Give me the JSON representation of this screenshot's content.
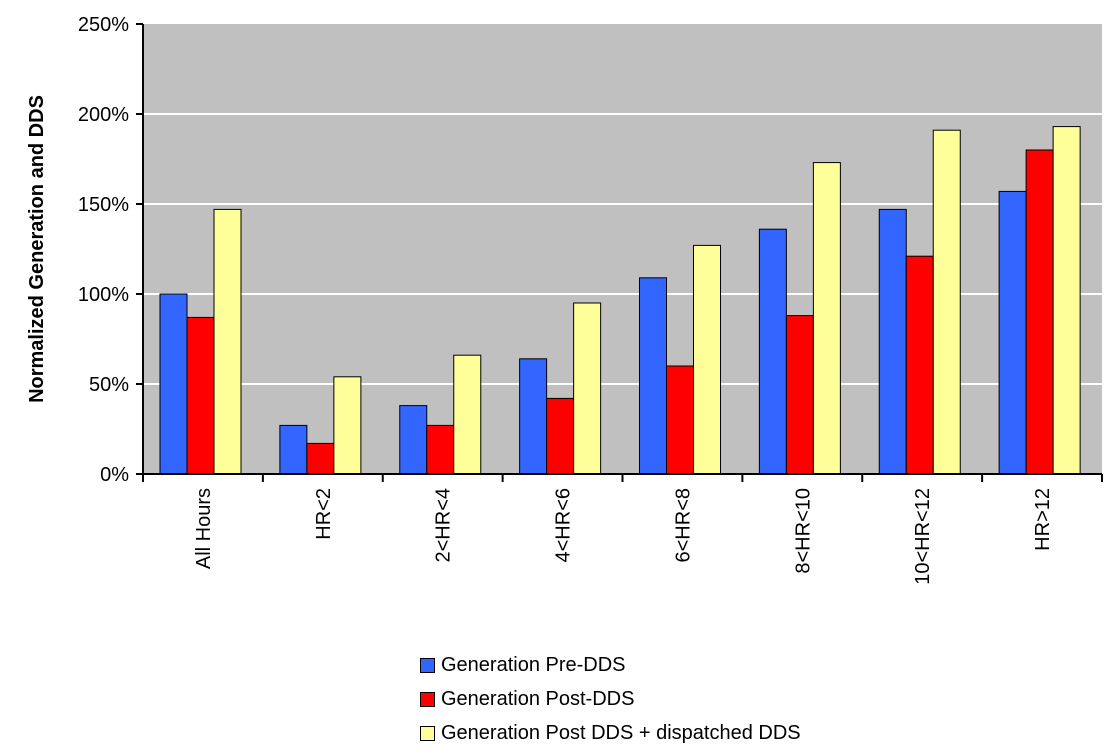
{
  "chart_data": {
    "type": "bar",
    "title": "",
    "xlabel": "",
    "ylabel": "Normalized Generation and DDS",
    "ylim": [
      0,
      2.5
    ],
    "yticks": [
      "0%",
      "50%",
      "100%",
      "150%",
      "200%",
      "250%"
    ],
    "grid": true,
    "legend_position": "bottom",
    "plot_background": "#C0C0C0",
    "categories": [
      "All Hours",
      "HR<2",
      "2<HR<4",
      "4<HR<6",
      "6<HR<8",
      "8<HR<10",
      "10<HR<12",
      "HR>12"
    ],
    "series": [
      {
        "name": "Generation Pre-DDS",
        "color": "#3366FF",
        "values": [
          1.0,
          0.27,
          0.38,
          0.64,
          1.09,
          1.36,
          1.47,
          1.57
        ]
      },
      {
        "name": "Generation Post-DDS",
        "color": "#FF0000",
        "values": [
          0.87,
          0.17,
          0.27,
          0.42,
          0.6,
          0.88,
          1.21,
          1.8
        ]
      },
      {
        "name": "Generation Post DDS + dispatched DDS",
        "color": "#FFFF99",
        "values": [
          1.47,
          0.54,
          0.66,
          0.95,
          1.27,
          1.73,
          1.91,
          1.93
        ]
      }
    ]
  }
}
